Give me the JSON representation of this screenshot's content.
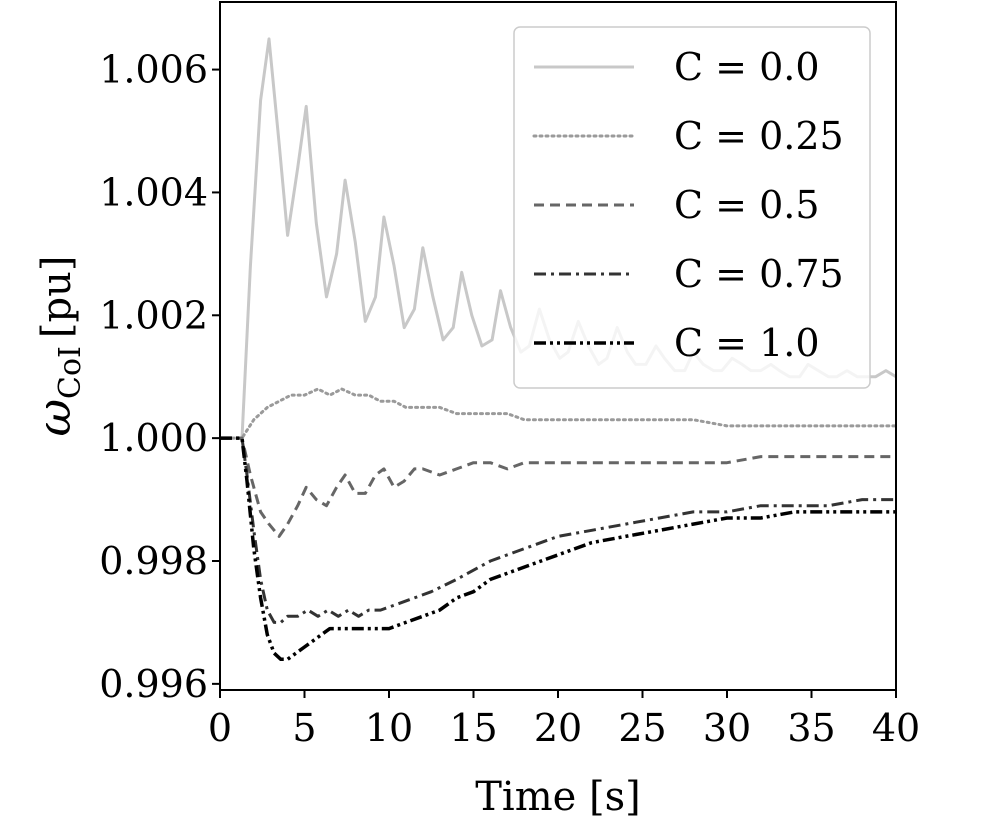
{
  "chart_data": {
    "type": "line",
    "title": "",
    "xlabel": "Time [s]",
    "ylabel": "ω_CoI [pu]",
    "ylabel_main": "ω",
    "ylabel_sub": "CoI",
    "ylabel_unit": "[pu]",
    "xlim": [
      0,
      40
    ],
    "ylim": [
      0.9959,
      1.0071
    ],
    "xticks": [
      0,
      5,
      10,
      15,
      20,
      25,
      30,
      35,
      40
    ],
    "xtick_labels": [
      "0",
      "5",
      "10",
      "15",
      "20",
      "25",
      "30",
      "35",
      "40"
    ],
    "yticks": [
      0.996,
      0.998,
      1.0,
      1.002,
      1.004,
      1.006
    ],
    "ytick_labels": [
      "0.996",
      "0.998",
      "1.000",
      "1.002",
      "1.004",
      "1.006"
    ],
    "grid": false,
    "legend_position": "top-right",
    "series": [
      {
        "name": "C = 0.0",
        "color": "#c8c8c8",
        "dash": "solid",
        "x": [
          0,
          1.3,
          1.8,
          2.4,
          2.9,
          3.5,
          4.0,
          4.6,
          5.1,
          5.7,
          6.3,
          6.9,
          7.4,
          8.0,
          8.6,
          9.2,
          9.7,
          10.3,
          10.9,
          11.5,
          12.0,
          12.6,
          13.2,
          13.8,
          14.3,
          14.9,
          15.5,
          16.1,
          16.6,
          17.2,
          17.8,
          18.3,
          18.9,
          19.5,
          20.1,
          20.6,
          21.2,
          21.8,
          22.4,
          22.9,
          23.5,
          24.1,
          24.6,
          25.2,
          25.8,
          26.3,
          26.9,
          27.5,
          28.0,
          28.6,
          29.2,
          29.7,
          30.3,
          30.9,
          31.4,
          32.0,
          32.6,
          33.1,
          33.7,
          34.3,
          34.8,
          35.4,
          36.0,
          36.5,
          37.1,
          37.7,
          38.2,
          38.8,
          39.4,
          40.0
        ],
        "values": [
          1.0,
          1.0,
          1.0028,
          1.0055,
          1.0065,
          1.0048,
          1.0033,
          1.0044,
          1.0054,
          1.0035,
          1.0023,
          1.003,
          1.0042,
          1.0032,
          1.0019,
          1.0023,
          1.0036,
          1.0028,
          1.0018,
          1.0021,
          1.0031,
          1.0023,
          1.0016,
          1.0018,
          1.0027,
          1.002,
          1.0015,
          1.0016,
          1.0024,
          1.0018,
          1.0014,
          1.0015,
          1.0021,
          1.0016,
          1.0013,
          1.0014,
          1.0019,
          1.0015,
          1.0012,
          1.0013,
          1.0018,
          1.0014,
          1.0012,
          1.0012,
          1.0015,
          1.0013,
          1.0011,
          1.0011,
          1.0014,
          1.0012,
          1.0011,
          1.0011,
          1.0013,
          1.0012,
          1.0011,
          1.0011,
          1.0012,
          1.0011,
          1.001,
          1.001,
          1.0012,
          1.0011,
          1.001,
          1.001,
          1.0011,
          1.001,
          1.001,
          1.001,
          1.0011,
          1.001
        ]
      },
      {
        "name": "C = 0.25",
        "color": "#9a9a9a",
        "dash": "dotted",
        "x": [
          0,
          1.3,
          2.0,
          2.8,
          3.5,
          4.2,
          5.0,
          5.8,
          6.5,
          7.2,
          8.0,
          8.8,
          9.5,
          10.3,
          11.0,
          12.0,
          13.0,
          14.0,
          15.0,
          16.0,
          17.0,
          18.0,
          19.0,
          20.0,
          22.0,
          24.0,
          26.0,
          28.0,
          30.0,
          32.0,
          34.0,
          36.0,
          38.0,
          40.0
        ],
        "values": [
          1.0,
          1.0,
          1.0003,
          1.0005,
          1.0006,
          1.0007,
          1.0007,
          1.0008,
          1.0007,
          1.0008,
          1.0007,
          1.0007,
          1.0006,
          1.0006,
          1.0005,
          1.0005,
          1.0005,
          1.0004,
          1.0004,
          1.0004,
          1.0004,
          1.0003,
          1.0003,
          1.0003,
          1.0003,
          1.0003,
          1.0003,
          1.0003,
          1.0002,
          1.0002,
          1.0002,
          1.0002,
          1.0002,
          1.0002
        ]
      },
      {
        "name": "C = 0.5",
        "color": "#666666",
        "dash": "dashed",
        "x": [
          0,
          1.3,
          1.8,
          2.4,
          2.9,
          3.5,
          4.0,
          4.6,
          5.1,
          5.7,
          6.3,
          6.9,
          7.4,
          8.0,
          8.6,
          9.2,
          9.7,
          10.3,
          10.9,
          11.5,
          12.0,
          13.0,
          14.0,
          15.0,
          16.0,
          17.0,
          18.0,
          19.0,
          20.0,
          22.0,
          24.0,
          26.0,
          28.0,
          30.0,
          32.0,
          34.0,
          36.0,
          38.0,
          40.0
        ],
        "values": [
          1.0,
          1.0,
          0.9994,
          0.9988,
          0.9986,
          0.9984,
          0.9986,
          0.9989,
          0.9992,
          0.999,
          0.9989,
          0.9992,
          0.9994,
          0.9991,
          0.9991,
          0.9994,
          0.9995,
          0.9992,
          0.9993,
          0.9995,
          0.9995,
          0.9994,
          0.9995,
          0.9996,
          0.9996,
          0.9995,
          0.9996,
          0.9996,
          0.9996,
          0.9996,
          0.9996,
          0.9996,
          0.9996,
          0.9996,
          0.9997,
          0.9997,
          0.9997,
          0.9997,
          0.9997
        ]
      },
      {
        "name": "C = 0.75",
        "color": "#333333",
        "dash": "dashdot",
        "x": [
          0,
          1.3,
          1.6,
          2.0,
          2.4,
          2.8,
          3.2,
          3.6,
          4.0,
          4.6,
          5.2,
          5.8,
          6.4,
          7.0,
          7.6,
          8.2,
          8.8,
          9.5,
          10.5,
          11.5,
          12.5,
          14.0,
          16.0,
          18.0,
          20.0,
          22.0,
          24.0,
          26.0,
          28.0,
          30.0,
          32.0,
          34.0,
          36.0,
          38.0,
          40.0
        ],
        "values": [
          1.0,
          1.0,
          0.9994,
          0.9985,
          0.9977,
          0.9972,
          0.997,
          0.997,
          0.9971,
          0.9971,
          0.9972,
          0.9971,
          0.9972,
          0.9971,
          0.9972,
          0.9971,
          0.9972,
          0.9972,
          0.9973,
          0.9974,
          0.9975,
          0.9977,
          0.998,
          0.9982,
          0.9984,
          0.9985,
          0.9986,
          0.9987,
          0.9988,
          0.9988,
          0.9989,
          0.9989,
          0.9989,
          0.999,
          0.999
        ]
      },
      {
        "name": "C = 1.0",
        "color": "#000000",
        "dash": "dashdotdot",
        "x": [
          0,
          1.3,
          1.6,
          2.0,
          2.4,
          2.8,
          3.2,
          3.6,
          4.0,
          4.5,
          5.0,
          5.5,
          6.0,
          6.5,
          7.0,
          8.0,
          9.0,
          10.0,
          11.0,
          12.0,
          13.0,
          14.0,
          15.0,
          16.0,
          18.0,
          20.0,
          22.0,
          24.0,
          26.0,
          28.0,
          30.0,
          32.0,
          34.0,
          36.0,
          38.0,
          40.0
        ],
        "values": [
          1.0,
          1.0,
          0.9993,
          0.9982,
          0.9974,
          0.9968,
          0.9965,
          0.9964,
          0.9964,
          0.9965,
          0.9966,
          0.9967,
          0.9968,
          0.9969,
          0.9969,
          0.9969,
          0.9969,
          0.9969,
          0.997,
          0.9971,
          0.9972,
          0.9974,
          0.9975,
          0.9977,
          0.9979,
          0.9981,
          0.9983,
          0.9984,
          0.9985,
          0.9986,
          0.9987,
          0.9987,
          0.9988,
          0.9988,
          0.9988,
          0.9988
        ]
      }
    ]
  }
}
